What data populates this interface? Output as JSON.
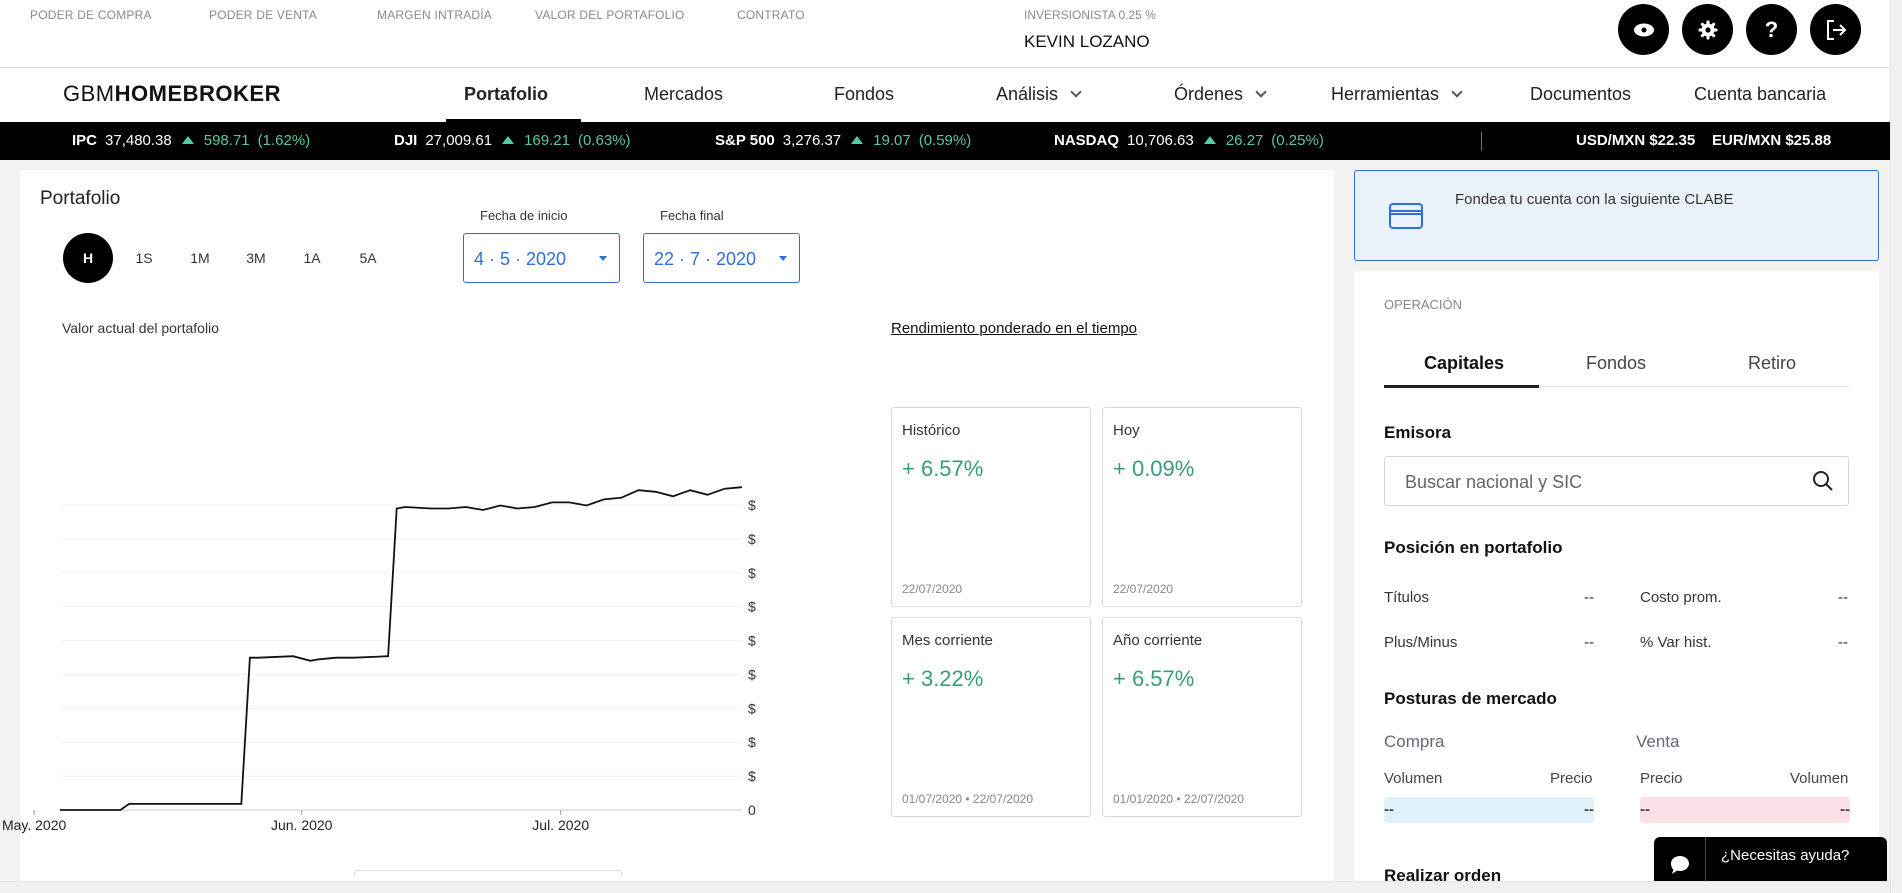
{
  "top": {
    "metrics": [
      "PODER DE COMPRA",
      "PODER DE VENTA",
      "MARGEN INTRADÍA",
      "VALOR DEL PORTAFOLIO",
      "CONTRATO"
    ],
    "investor_label": "INVERSIONISTA 0.25 %",
    "user_name": "KEVIN LOZANO",
    "buttons": [
      "eye-icon",
      "gear-icon",
      "help-icon",
      "logout-icon"
    ]
  },
  "nav": {
    "logo_left": "GBM",
    "logo_right": "HOMEBROKER",
    "items": [
      "Portafolio",
      "Mercados",
      "Fondos",
      "Análisis",
      "Órdenes",
      "Herramientas",
      "Documentos",
      "Cuenta bancaria"
    ],
    "active": "Portafolio"
  },
  "ticker": {
    "indices": [
      {
        "name": "IPC",
        "value": "37,480.38",
        "change": "598.71",
        "pct": "(1.62%)"
      },
      {
        "name": "DJI",
        "value": "27,009.61",
        "change": "169.21",
        "pct": "(0.63%)"
      },
      {
        "name": "S&P 500",
        "value": "3,276.37",
        "change": "19.07",
        "pct": "(0.59%)"
      },
      {
        "name": "NASDAQ",
        "value": "10,706.63",
        "change": "26.27",
        "pct": "(0.25%)"
      }
    ],
    "fx": [
      {
        "pair": "USD/MXN",
        "value": "$22.35"
      },
      {
        "pair": "EUR/MXN",
        "value": "$25.88"
      }
    ],
    "up_color": "#57c9a4"
  },
  "portfolio": {
    "title": "Portafolio",
    "periods": [
      "H",
      "1S",
      "1M",
      "3M",
      "1A",
      "5A"
    ],
    "active_period": "H",
    "start_label": "Fecha de inicio",
    "start_value": "4 · 5 · 2020",
    "end_label": "Fecha final",
    "end_value": "22 · 7 · 2020",
    "chart_label": "Valor actual del portafolio",
    "returns_title": "Rendimiento ponderado en el tiempo",
    "cards": [
      {
        "title": "Histórico",
        "value": "+ 6.57%",
        "date": "22/07/2020"
      },
      {
        "title": "Hoy",
        "value": "+ 0.09%",
        "date": "22/07/2020"
      },
      {
        "title": "Mes corriente",
        "value": "+ 3.22%",
        "date": "01/07/2020 • 22/07/2020"
      },
      {
        "title": "Año corriente",
        "value": "+ 6.57%",
        "date": "01/01/2020 • 22/07/2020"
      }
    ]
  },
  "chart_data": {
    "type": "line",
    "title": "",
    "xlabel": "",
    "ylabel": "",
    "x_ticks": [
      "May. 2020",
      "Jun. 2020",
      "Jul. 2020"
    ],
    "y_ticks": [
      "0",
      "$",
      "$",
      "$",
      "$",
      "$",
      "$",
      "$",
      "$",
      "$"
    ],
    "x_range": [
      "2020-05-04",
      "2020-07-22"
    ],
    "y_range_rel": [
      0,
      1
    ],
    "grid": true,
    "series": [
      {
        "x": [
          "2020-05-04",
          "2020-05-11",
          "2020-05-12",
          "2020-05-18",
          "2020-05-25",
          "2020-05-26",
          "2020-05-27",
          "2020-05-31",
          "2020-06-02",
          "2020-06-03",
          "2020-06-05",
          "2020-06-07",
          "2020-06-11",
          "2020-06-12",
          "2020-06-13",
          "2020-06-16",
          "2020-06-18",
          "2020-06-20",
          "2020-06-22",
          "2020-06-24",
          "2020-06-26",
          "2020-06-28",
          "2020-06-30",
          "2020-07-02",
          "2020-07-04",
          "2020-07-06",
          "2020-07-08",
          "2020-07-10",
          "2020-07-12",
          "2020-07-14",
          "2020-07-16",
          "2020-07-18",
          "2020-07-20",
          "2020-07-22"
        ],
        "y": [
          0,
          0,
          0.02,
          0.02,
          0.02,
          0.5,
          0.5,
          0.505,
          0.49,
          0.495,
          0.5,
          0.5,
          0.505,
          0.99,
          0.995,
          0.99,
          0.99,
          0.995,
          0.985,
          1.0,
          0.99,
          0.995,
          1.01,
          1.01,
          1.0,
          1.02,
          1.025,
          1.05,
          1.045,
          1.03,
          1.05,
          1.035,
          1.055,
          1.06
        ]
      }
    ]
  },
  "sidebar": {
    "clabe_text": "Fondea tu cuenta con la siguiente CLABE",
    "operation_label": "OPERACIÓN",
    "tabs": [
      "Capitales",
      "Fondos",
      "Retiro"
    ],
    "active_tab": "Capitales",
    "emisora_label": "Emisora",
    "search_placeholder": "Buscar nacional y SIC",
    "position_title": "Posición en portafolio",
    "position": [
      {
        "label": "Títulos",
        "value": "--"
      },
      {
        "label": "Costo prom.",
        "value": "--"
      },
      {
        "label": "Plus/Minus",
        "value": "--"
      },
      {
        "label": "% Var hist.",
        "value": "--"
      }
    ],
    "market_title": "Posturas de mercado",
    "buy_label": "Compra",
    "sell_label": "Venta",
    "buy_cols": [
      "Volumen",
      "Precio"
    ],
    "sell_cols": [
      "Precio",
      "Volumen"
    ],
    "buy_values": [
      "--",
      "--"
    ],
    "sell_values": [
      "--",
      "--"
    ],
    "buy_color": "#dff1fb",
    "sell_color": "#fde0e6",
    "next_section": "Realizar orden"
  },
  "help": {
    "label": "¿Necesitas ayuda?"
  }
}
